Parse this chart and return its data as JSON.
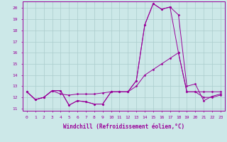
{
  "title": "",
  "xlabel": "Windchill (Refroidissement éolien,°C)",
  "ylabel": "",
  "background_color": "#cce8e8",
  "line_color": "#990099",
  "grid_color": "#aacccc",
  "xlim": [
    -0.5,
    23.5
  ],
  "ylim": [
    10.8,
    20.6
  ],
  "yticks": [
    11,
    12,
    13,
    14,
    15,
    16,
    17,
    18,
    19,
    20
  ],
  "xticks": [
    0,
    1,
    2,
    3,
    4,
    5,
    6,
    7,
    8,
    9,
    10,
    11,
    12,
    13,
    14,
    15,
    16,
    17,
    18,
    19,
    20,
    21,
    22,
    23
  ],
  "series": [
    [
      12.5,
      11.8,
      12.0,
      12.6,
      12.6,
      11.3,
      11.7,
      11.6,
      11.4,
      11.4,
      12.5,
      12.5,
      12.5,
      13.5,
      18.5,
      20.4,
      19.9,
      20.1,
      19.4,
      13.0,
      13.2,
      11.7,
      12.1,
      12.3
    ],
    [
      12.5,
      11.8,
      12.0,
      12.6,
      12.6,
      11.3,
      11.7,
      11.6,
      11.4,
      11.4,
      12.5,
      12.5,
      12.5,
      13.5,
      18.5,
      20.4,
      19.9,
      20.1,
      16.0,
      12.5,
      12.5,
      12.5,
      12.5,
      12.5
    ],
    [
      12.5,
      11.8,
      12.0,
      12.6,
      12.3,
      12.2,
      12.3,
      12.3,
      12.3,
      12.4,
      12.5,
      12.5,
      12.5,
      13.0,
      14.0,
      14.5,
      15.0,
      15.5,
      16.0,
      12.5,
      12.5,
      12.0,
      12.0,
      12.2
    ]
  ]
}
